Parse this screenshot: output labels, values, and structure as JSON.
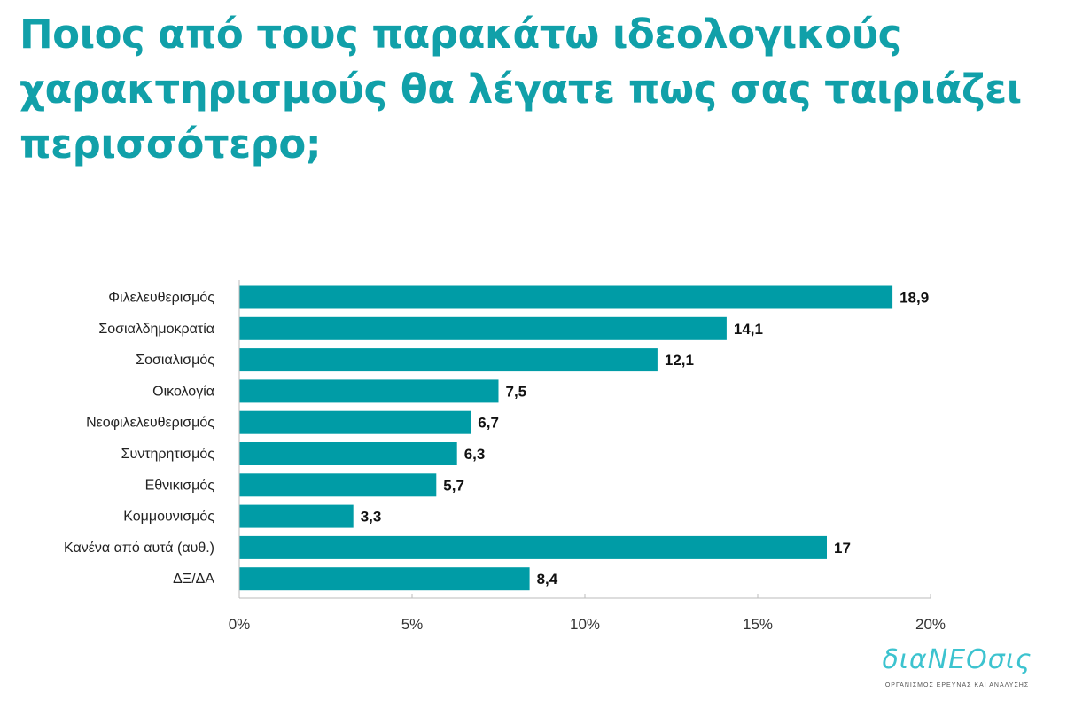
{
  "chart_data": {
    "type": "bar",
    "orientation": "horizontal",
    "title": "Ποιος από τους παρακάτω ιδεολογικούς χαρακτηρισμούς θα λέγατε πως σας ταιριάζει περισσότερο;",
    "categories": [
      "Φιλελευθερισμός",
      "Σοσιαλδημοκρατία",
      "Σοσιαλισμός",
      "Οικολογία",
      "Νεοφιλελευθερισμός",
      "Συντηρητισμός",
      "Εθνικισμός",
      "Κομμουνισμός",
      "Κανένα από αυτά (αυθ.)",
      "ΔΞ/ΔΑ"
    ],
    "values": [
      18.9,
      14.1,
      12.1,
      7.5,
      6.7,
      6.3,
      5.7,
      3.3,
      17,
      8.4
    ],
    "value_labels": [
      "18,9",
      "14,1",
      "12,1",
      "7,5",
      "6,7",
      "6,3",
      "5,7",
      "3,3",
      "17",
      "8,4"
    ],
    "xlim": [
      0,
      20
    ],
    "x_ticks": [
      0,
      5,
      10,
      15,
      20
    ],
    "x_tick_labels": [
      "0%",
      "5%",
      "10%",
      "15%",
      "20%"
    ],
    "xlabel": "",
    "ylabel": "",
    "grid": false,
    "bar_color": "#009ca6",
    "title_color": "#11a0a9"
  },
  "logo": {
    "name": "διαNEOσις",
    "subtitle": "ΟΡΓΑΝΙΣΜΟΣ ΕΡΕΥΝΑΣ ΚΑΙ ΑΝΑΛΥΣΗΣ",
    "color": "#3cc3cf"
  }
}
